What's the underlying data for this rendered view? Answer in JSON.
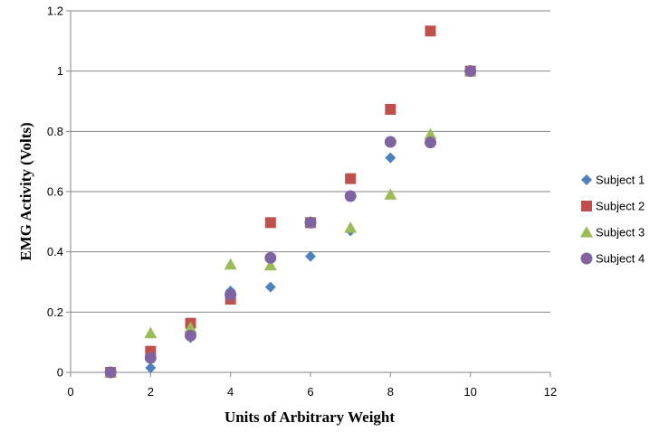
{
  "chart_data": {
    "type": "scatter",
    "title": "",
    "xlabel": "Units of Arbitrary  Weight",
    "ylabel": "EMG Activity (Volts)",
    "xlim": [
      0,
      12
    ],
    "ylim": [
      0,
      1.2
    ],
    "x_ticks": [
      0,
      2,
      4,
      6,
      8,
      10,
      12
    ],
    "y_ticks": [
      0,
      0.2,
      0.4,
      0.6,
      0.8,
      1,
      1.2
    ],
    "grid": "horizontal major gridlines",
    "legend_position": "right",
    "series": [
      {
        "name": "Subject 1",
        "marker": "diamond",
        "color": "#4F81BD",
        "points": [
          [
            1,
            0.0
          ],
          [
            2,
            0.015
          ],
          [
            3,
            0.115
          ],
          [
            4,
            0.27
          ],
          [
            5,
            0.283
          ],
          [
            6,
            0.385
          ],
          [
            7,
            0.47
          ],
          [
            8,
            0.712
          ],
          [
            9,
            0.77
          ],
          [
            10,
            1.0
          ]
        ]
      },
      {
        "name": "Subject 2",
        "marker": "square",
        "color": "#C0504D",
        "points": [
          [
            1,
            0.0
          ],
          [
            2,
            0.07
          ],
          [
            3,
            0.163
          ],
          [
            4,
            0.243
          ],
          [
            5,
            0.497
          ],
          [
            6,
            0.497
          ],
          [
            7,
            0.643
          ],
          [
            8,
            0.873
          ],
          [
            9,
            1.133
          ],
          [
            10,
            1.0
          ]
        ]
      },
      {
        "name": "Subject 3",
        "marker": "triangle",
        "color": "#9BBB59",
        "points": [
          [
            1,
            0.0
          ],
          [
            2,
            0.13
          ],
          [
            3,
            0.148
          ],
          [
            4,
            0.358
          ],
          [
            5,
            0.355
          ],
          [
            6,
            0.5
          ],
          [
            7,
            0.48
          ],
          [
            8,
            0.59
          ],
          [
            9,
            0.79
          ],
          [
            10,
            1.0
          ]
        ]
      },
      {
        "name": "Subject 4",
        "marker": "circle",
        "color": "#8064A2",
        "points": [
          [
            1,
            0.0
          ],
          [
            2,
            0.048
          ],
          [
            3,
            0.122
          ],
          [
            4,
            0.258
          ],
          [
            5,
            0.38
          ],
          [
            6,
            0.497
          ],
          [
            7,
            0.585
          ],
          [
            8,
            0.765
          ],
          [
            9,
            0.763
          ],
          [
            10,
            1.0
          ]
        ]
      }
    ]
  }
}
